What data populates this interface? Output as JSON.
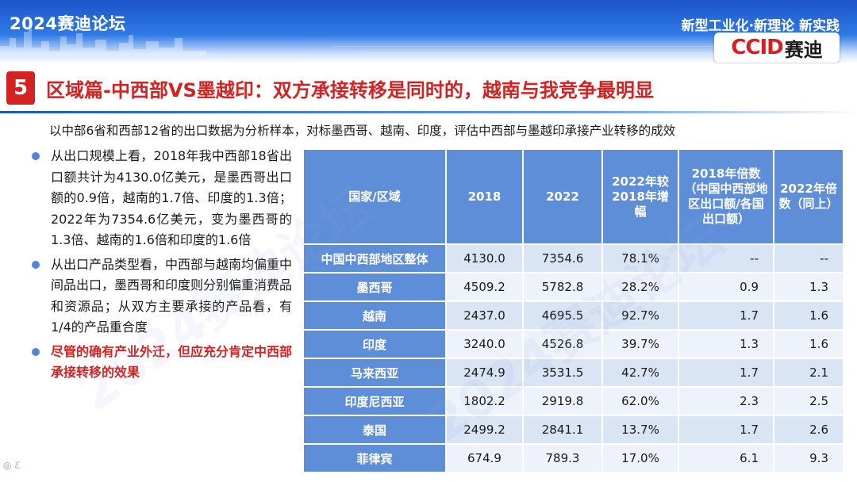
{
  "header": {
    "event_title": "2024赛迪论坛",
    "slogan": "新型工业化·新理论 新实践",
    "logo_en": "CCID",
    "logo_cn": "赛迪"
  },
  "title": {
    "number": "5",
    "text": "区域篇-中西部VS墨越印：双方承接转移是同时的，越南与我竞争最明显"
  },
  "subtitle": "以中部6省和西部12省的出口数据为分析样本，对标墨西哥、越南、印度，评估中西部与墨越印承接产业转移的成效",
  "bullets": [
    "从出口规模上看，2018年我中西部18省出口额共计为4130.0亿美元，是墨西哥出口额的0.9倍，越南的1.7倍、印度的1.3倍；2022年为7354.6亿美元，变为墨西哥的1.3倍、越南的1.6倍和印度的1.6倍",
    "从出口产品类型看，中西部与越南均偏重中间品出口，墨西哥和印度则分别偏重消费品和资源品；从双方主要承接的产品看，有1/4的产品重合度",
    "尽管的确有产业外迁，但应充分肯定中西部承接转移的效果"
  ],
  "table": {
    "headers": [
      "国家/区域",
      "2018",
      "2022",
      "2022年较2018年增幅",
      "2018年倍数（中国中西部地区出口额/各国出口额）",
      "2022年倍数（同上）"
    ],
    "rows": [
      [
        "中国中西部地区整体",
        "4130.0",
        "7354.6",
        "78.1%",
        "--",
        "--"
      ],
      [
        "墨西哥",
        "4509.2",
        "5782.8",
        "28.2%",
        "0.9",
        "1.3"
      ],
      [
        "越南",
        "2437.0",
        "4695.5",
        "92.7%",
        "1.7",
        "1.6"
      ],
      [
        "印度",
        "3240.0",
        "4526.8",
        "39.7%",
        "1.3",
        "1.6"
      ],
      [
        "马来西亚",
        "2474.9",
        "3531.5",
        "42.7%",
        "1.7",
        "2.1"
      ],
      [
        "印度尼西亚",
        "1802.2",
        "2919.8",
        "62.0%",
        "2.3",
        "2.5"
      ],
      [
        "泰国",
        "2499.2",
        "2841.1",
        "13.7%",
        "1.7",
        "2.6"
      ],
      [
        "菲律宾",
        "674.9",
        "789.3",
        "17.0%",
        "6.1",
        "9.3"
      ]
    ]
  },
  "colors": {
    "accent_red": "#d42121",
    "header_blue": "#5f8ed8",
    "row_light": "#d9e4f5",
    "row_lighter": "#eef3fb"
  }
}
